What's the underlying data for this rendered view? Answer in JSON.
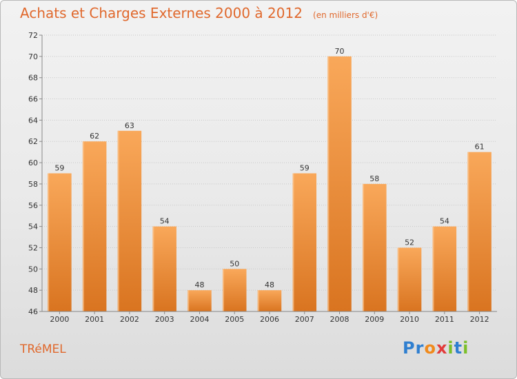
{
  "page": {
    "commune": "TRéMEL"
  },
  "logo": {
    "letters": [
      {
        "char": "P",
        "color": "#2f7fd0"
      },
      {
        "char": "r",
        "color": "#2f7fd0"
      },
      {
        "char": "o",
        "color": "#f08a1c"
      },
      {
        "char": "x",
        "color": "#e23b3b"
      },
      {
        "char": "i",
        "color": "#7bbf2a"
      },
      {
        "char": "t",
        "color": "#2f7fd0"
      },
      {
        "char": "i",
        "color": "#7bbf2a"
      }
    ]
  },
  "chart_data": {
    "type": "bar",
    "title": "Achats et Charges Externes 2000 à 2012",
    "subtitle": "(en milliers d'€)",
    "xlabel": "",
    "ylabel": "",
    "categories": [
      "2000",
      "2001",
      "2002",
      "2003",
      "2004",
      "2005",
      "2006",
      "2007",
      "2008",
      "2009",
      "2010",
      "2011",
      "2012"
    ],
    "values": [
      59,
      62,
      63,
      54,
      48,
      50,
      48,
      59,
      70,
      58,
      52,
      54,
      61
    ],
    "data_labels": [
      "59",
      "62",
      "63",
      "54",
      "48",
      "50",
      "48",
      "59",
      "70",
      "58",
      "52",
      "54",
      "61"
    ],
    "ylim": [
      46,
      72
    ],
    "yticks": [
      "46",
      "48",
      "50",
      "52",
      "54",
      "56",
      "58",
      "60",
      "62",
      "64",
      "66",
      "68",
      "70",
      "72"
    ],
    "grid": true,
    "legend": "none",
    "colors": {
      "bar_light": "#f9a85a",
      "bar_dark": "#d97420",
      "grid": "#c8c8c8",
      "axis": "#888888",
      "title": "#e0682c"
    }
  }
}
